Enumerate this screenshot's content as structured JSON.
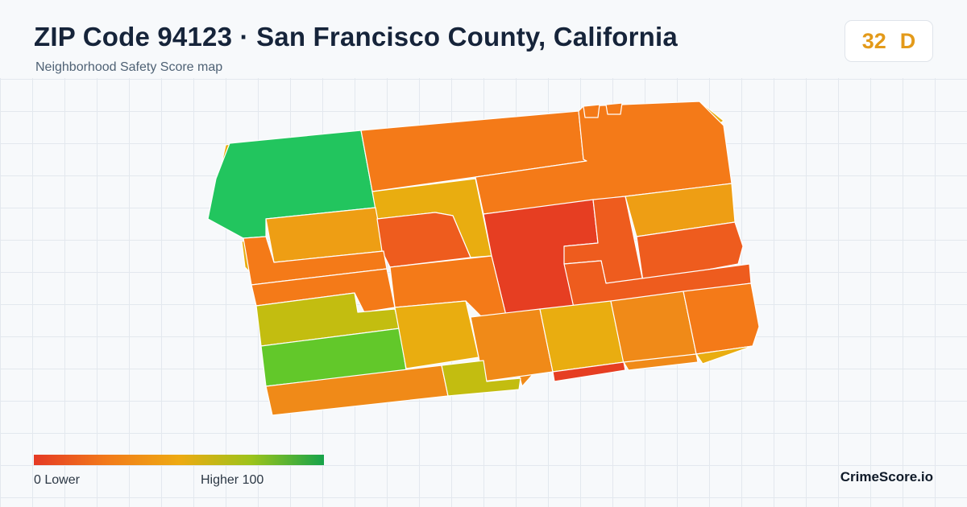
{
  "header": {
    "title": "ZIP Code 94123 · San Francisco County, California",
    "subtitle": "Neighborhood Safety Score map"
  },
  "score_badge": {
    "score": "32",
    "grade": "D",
    "color": "#e39a1a"
  },
  "legend": {
    "low_label": "0  Lower",
    "high_label": "Higher  100",
    "gradient_colors": [
      "#e53a24",
      "#f27a1a",
      "#eeaa12",
      "#9cc31b",
      "#16a34a"
    ]
  },
  "branding": {
    "text": "CrimeScore.io"
  },
  "map": {
    "region_colors": {
      "worst": "#e63e22",
      "very_low": "#ee5c1e",
      "low": "#f47a18",
      "below_mid": "#f08a18",
      "mid": "#ee9e14",
      "above_mid": "#e9ad10",
      "moderate_good": "#c3bd10",
      "good": "#62c82a",
      "best": "#22c55e"
    }
  }
}
